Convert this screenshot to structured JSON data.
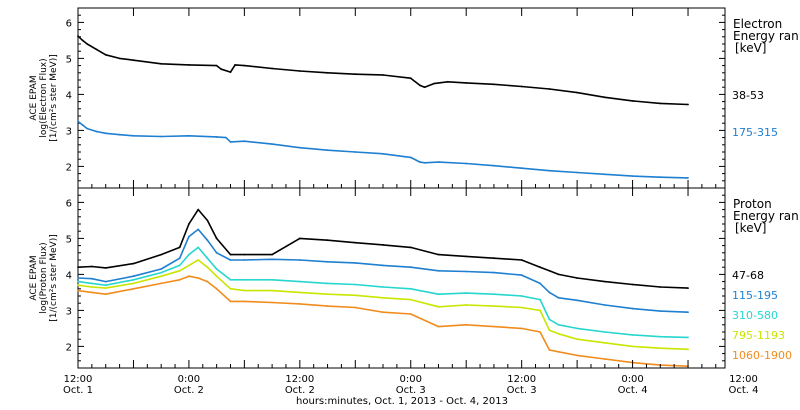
{
  "chart_data": [
    {
      "type": "line",
      "panel": "electron",
      "ylabel_lines": [
        "ACE EPAM",
        "log(Electron Flux)",
        "[1/(cm²s ster MeV)]"
      ],
      "ylim": [
        1.4,
        6.4
      ],
      "yticks": [
        2,
        3,
        4,
        5,
        6
      ],
      "legend_title": [
        "Electron",
        "Energy ran"
      ],
      "legend_unit": "[keV]",
      "series": [
        {
          "name": "38-53",
          "color": "#000000",
          "x": [
            0,
            1,
            2,
            4,
            6,
            9,
            12,
            18,
            24,
            30,
            31,
            33,
            34,
            36,
            42,
            48,
            54,
            60,
            66,
            72,
            74,
            75,
            77,
            80,
            84,
            90,
            96,
            102,
            108,
            114,
            120,
            126,
            132
          ],
          "y": [
            5.62,
            5.5,
            5.4,
            5.25,
            5.1,
            5.0,
            4.95,
            4.85,
            4.82,
            4.8,
            4.7,
            4.62,
            4.82,
            4.8,
            4.72,
            4.65,
            4.6,
            4.56,
            4.54,
            4.45,
            4.25,
            4.2,
            4.3,
            4.35,
            4.32,
            4.28,
            4.22,
            4.15,
            4.05,
            3.92,
            3.82,
            3.75,
            3.72
          ]
        },
        {
          "name": "175-315",
          "color": "#1f7fd0",
          "x": [
            0,
            1,
            2,
            4,
            6,
            9,
            12,
            18,
            24,
            30,
            32,
            33,
            36,
            42,
            48,
            54,
            60,
            66,
            72,
            74,
            75,
            78,
            84,
            90,
            96,
            102,
            108,
            114,
            120,
            126,
            132
          ],
          "y": [
            3.25,
            3.15,
            3.05,
            2.97,
            2.92,
            2.88,
            2.85,
            2.83,
            2.85,
            2.82,
            2.8,
            2.68,
            2.7,
            2.62,
            2.52,
            2.45,
            2.4,
            2.35,
            2.25,
            2.12,
            2.1,
            2.12,
            2.08,
            2.02,
            1.95,
            1.88,
            1.83,
            1.78,
            1.73,
            1.7,
            1.68
          ]
        }
      ]
    },
    {
      "type": "line",
      "panel": "proton",
      "ylabel_lines": [
        "ACE EPAM",
        "log(Proton Flux)",
        "[1/(cm²s ster MeV)]"
      ],
      "ylim": [
        1.4,
        6.4
      ],
      "yticks": [
        2,
        3,
        4,
        5,
        6
      ],
      "legend_title": [
        "Proton",
        "Energy ran"
      ],
      "legend_unit": "[keV]",
      "series": [
        {
          "name": "47-68",
          "color": "#000000",
          "x": [
            0,
            3,
            6,
            12,
            18,
            22,
            24,
            26,
            28,
            30,
            33,
            36,
            42,
            48,
            54,
            60,
            66,
            72,
            78,
            84,
            90,
            96,
            100,
            102,
            104,
            108,
            114,
            120,
            126,
            132
          ],
          "y": [
            4.2,
            4.22,
            4.18,
            4.3,
            4.55,
            4.75,
            5.4,
            5.8,
            5.5,
            5.0,
            4.55,
            4.55,
            4.55,
            5.0,
            4.95,
            4.88,
            4.82,
            4.75,
            4.55,
            4.5,
            4.45,
            4.4,
            4.2,
            4.1,
            4.0,
            3.9,
            3.8,
            3.72,
            3.65,
            3.62
          ]
        },
        {
          "name": "115-195",
          "color": "#1f7fd0",
          "x": [
            0,
            3,
            6,
            12,
            18,
            22,
            24,
            26,
            28,
            30,
            33,
            36,
            42,
            48,
            54,
            60,
            66,
            72,
            78,
            84,
            90,
            96,
            100,
            102,
            104,
            108,
            114,
            120,
            126,
            132
          ],
          "y": [
            3.9,
            3.88,
            3.8,
            3.95,
            4.15,
            4.45,
            5.05,
            5.25,
            4.95,
            4.6,
            4.4,
            4.4,
            4.42,
            4.4,
            4.35,
            4.32,
            4.25,
            4.2,
            4.1,
            4.08,
            4.05,
            3.98,
            3.75,
            3.5,
            3.35,
            3.28,
            3.15,
            3.05,
            2.98,
            2.95
          ]
        },
        {
          "name": "310-580",
          "color": "#27d6cf",
          "x": [
            0,
            3,
            6,
            12,
            18,
            22,
            24,
            26,
            28,
            30,
            33,
            36,
            42,
            48,
            54,
            60,
            66,
            72,
            78,
            84,
            90,
            96,
            100,
            102,
            104,
            108,
            114,
            120,
            126,
            132
          ],
          "y": [
            3.8,
            3.75,
            3.7,
            3.85,
            4.05,
            4.25,
            4.55,
            4.75,
            4.45,
            4.15,
            3.85,
            3.85,
            3.85,
            3.8,
            3.75,
            3.72,
            3.65,
            3.6,
            3.45,
            3.48,
            3.45,
            3.4,
            3.3,
            2.75,
            2.6,
            2.5,
            2.4,
            2.32,
            2.27,
            2.25
          ]
        },
        {
          "name": "795-1193",
          "color": "#c8e600",
          "x": [
            0,
            3,
            6,
            12,
            18,
            22,
            24,
            26,
            28,
            30,
            33,
            36,
            42,
            48,
            54,
            60,
            66,
            72,
            78,
            84,
            90,
            96,
            100,
            102,
            104,
            108,
            114,
            120,
            126,
            132
          ],
          "y": [
            3.7,
            3.65,
            3.62,
            3.75,
            3.95,
            4.1,
            4.25,
            4.4,
            4.2,
            3.95,
            3.6,
            3.55,
            3.55,
            3.5,
            3.45,
            3.42,
            3.35,
            3.3,
            3.1,
            3.15,
            3.12,
            3.08,
            3.0,
            2.45,
            2.35,
            2.2,
            2.1,
            2.0,
            1.95,
            1.92
          ]
        },
        {
          "name": "1060-1900",
          "color": "#f08c1e",
          "x": [
            0,
            3,
            6,
            12,
            18,
            22,
            24,
            26,
            28,
            30,
            33,
            36,
            42,
            48,
            54,
            60,
            66,
            72,
            78,
            84,
            90,
            96,
            100,
            102,
            104,
            108,
            114,
            120,
            126,
            132
          ],
          "y": [
            3.55,
            3.5,
            3.45,
            3.6,
            3.75,
            3.85,
            3.95,
            3.9,
            3.8,
            3.6,
            3.25,
            3.25,
            3.22,
            3.18,
            3.12,
            3.08,
            2.95,
            2.9,
            2.55,
            2.6,
            2.55,
            2.5,
            2.4,
            1.9,
            1.85,
            1.75,
            1.65,
            1.55,
            1.48,
            1.45
          ]
        }
      ]
    }
  ],
  "xaxis": {
    "xlim": [
      0,
      140
    ],
    "major_ticks": [
      0,
      12,
      24,
      36,
      48,
      60,
      72,
      84,
      96,
      108,
      120,
      132
    ],
    "labels": [
      {
        "x": 0,
        "time": "12:00",
        "date": "Oct. 1"
      },
      {
        "x": 24,
        "time": "0:00",
        "date": "Oct. 2"
      },
      {
        "x": 48,
        "time": "12:00",
        "date": "Oct. 2"
      },
      {
        "x": 72,
        "time": "0:00",
        "date": "Oct. 3"
      },
      {
        "x": 96,
        "time": "12:00",
        "date": "Oct. 3"
      },
      {
        "x": 120,
        "time": "0:00",
        "date": "Oct. 4"
      },
      {
        "x": 144,
        "time": "12:00",
        "date": "Oct. 4"
      }
    ],
    "caption": "hours:minutes, Oct.  1, 2013 - Oct.  4, 2013"
  }
}
